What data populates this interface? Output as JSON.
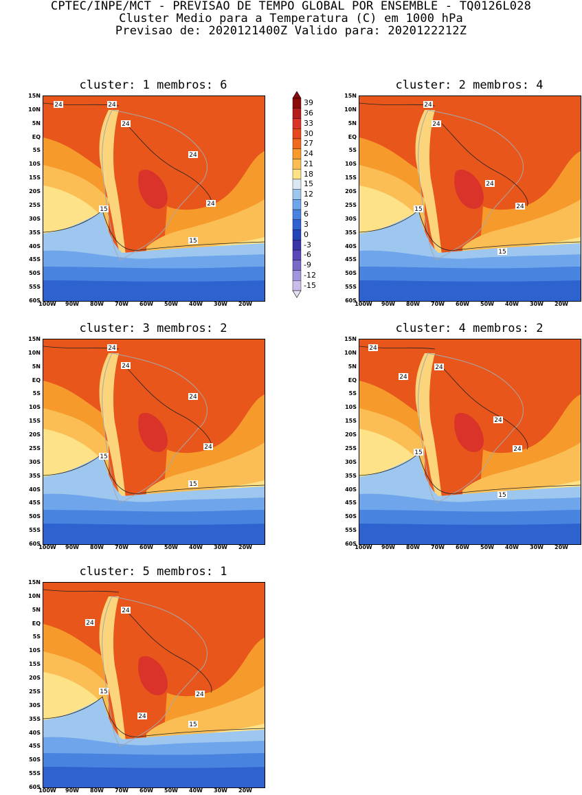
{
  "header": {
    "line1": "CPTEC/INPE/MCT - PREVISAO DE TEMPO GLOBAL POR ENSEMBLE - TQ0126L028",
    "line2": "Cluster Medio para a Temperatura (C) em 1000 hPa",
    "line3": "Previsao de: 2020121400Z   Valido para: 2020122212Z"
  },
  "panels": [
    {
      "title": "cluster: 1   membros: 6"
    },
    {
      "title": "cluster: 2   membros: 4"
    },
    {
      "title": "cluster: 3   membros: 2"
    },
    {
      "title": "cluster: 4   membros: 2"
    },
    {
      "title": "cluster: 5   membros: 1"
    }
  ],
  "axes": {
    "lat_ticks": [
      "15N",
      "10N",
      "5N",
      "EQ",
      "5S",
      "10S",
      "15S",
      "20S",
      "25S",
      "30S",
      "35S",
      "40S",
      "45S",
      "50S",
      "55S",
      "60S"
    ],
    "lon_ticks": [
      "100W",
      "90W",
      "80W",
      "70W",
      "60W",
      "50W",
      "40W",
      "30W",
      "20W"
    ]
  },
  "contour_labels": {
    "warm": "24",
    "cool": "15"
  },
  "colorbar": {
    "levels": [
      "39",
      "36",
      "33",
      "30",
      "27",
      "24",
      "21",
      "18",
      "15",
      "12",
      "9",
      "6",
      "3",
      "0",
      "-3",
      "-6",
      "-9",
      "-12",
      "-15"
    ],
    "colors": [
      "#8b0a0a",
      "#b51d1d",
      "#d9332a",
      "#e8481d",
      "#f06a1e",
      "#f69a2c",
      "#fbbe55",
      "#fde287",
      "#dbe8f3",
      "#9ec7ef",
      "#6fa5ea",
      "#4983e0",
      "#2d62cf",
      "#2343b8",
      "#3b33a8",
      "#5a47b8",
      "#7a68c8",
      "#a395db",
      "#cbbdeb"
    ]
  }
}
